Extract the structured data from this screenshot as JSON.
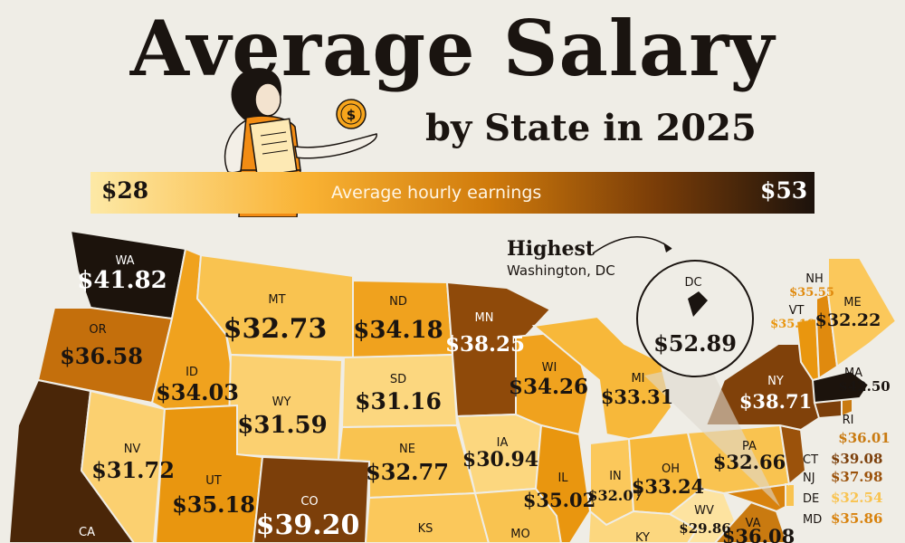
{
  "header": {
    "title": "Average Salary",
    "subtitle": "by State in 2025"
  },
  "legend": {
    "label": "Average hourly earnings",
    "min": "$28",
    "max": "$53",
    "min_color": "#fde9a6",
    "max_color": "#1c120c"
  },
  "callout": {
    "heading": "Highest",
    "subtext": "Washington, DC",
    "abbr": "DC",
    "value": "$52.89"
  },
  "states": [
    {
      "abbr": "WA",
      "value": "$41.82",
      "color": "#1c130c"
    },
    {
      "abbr": "OR",
      "value": "$36.58",
      "color": "#c46f0c"
    },
    {
      "abbr": "CA",
      "value": "",
      "color": "#4a2608"
    },
    {
      "abbr": "ID",
      "value": "$34.03",
      "color": "#f0a21e"
    },
    {
      "abbr": "NV",
      "value": "$31.72",
      "color": "#fbd070"
    },
    {
      "abbr": "UT",
      "value": "$35.18",
      "color": "#e9960f"
    },
    {
      "abbr": "MT",
      "value": "$32.73",
      "color": "#f9c350"
    },
    {
      "abbr": "WY",
      "value": "$31.59",
      "color": "#fbd070"
    },
    {
      "abbr": "CO",
      "value": "$39.20",
      "color": "#7c3f0a"
    },
    {
      "abbr": "ND",
      "value": "$34.18",
      "color": "#f0a21e"
    },
    {
      "abbr": "SD",
      "value": "$31.16",
      "color": "#fcd77f"
    },
    {
      "abbr": "NE",
      "value": "$32.77",
      "color": "#f9c350"
    },
    {
      "abbr": "KS",
      "value": "",
      "color": "#fbc85b"
    },
    {
      "abbr": "MN",
      "value": "$38.25",
      "color": "#8f4a0a"
    },
    {
      "abbr": "IA",
      "value": "$30.94",
      "color": "#fcd77f"
    },
    {
      "abbr": "MO",
      "value": "",
      "color": "#f9c350"
    },
    {
      "abbr": "WI",
      "value": "$34.26",
      "color": "#f0a21e"
    },
    {
      "abbr": "IL",
      "value": "$35.02",
      "color": "#e9960f"
    },
    {
      "abbr": "MI",
      "value": "$33.31",
      "color": "#f7b83a"
    },
    {
      "abbr": "IN",
      "value": "$32.07",
      "color": "#fbc85b"
    },
    {
      "abbr": "OH",
      "value": "$33.24",
      "color": "#f7b83a"
    },
    {
      "abbr": "KY",
      "value": "",
      "color": "#fcd77f"
    },
    {
      "abbr": "WV",
      "value": "$29.86",
      "color": "#fde3a0"
    },
    {
      "abbr": "VA",
      "value": "$36.08",
      "color": "#c97a10"
    },
    {
      "abbr": "PA",
      "value": "$32.66",
      "color": "#f9c350"
    },
    {
      "abbr": "NY",
      "value": "$38.71",
      "color": "#80410a"
    },
    {
      "abbr": "VT",
      "value": "$35.18",
      "color": "#e9960f"
    },
    {
      "abbr": "NH",
      "value": "$35.55",
      "color": "#e08a0e"
    },
    {
      "abbr": "ME",
      "value": "$32.22",
      "color": "#fbc85b"
    },
    {
      "abbr": "MA",
      "value": "$42.50",
      "color": "#1c130c"
    },
    {
      "abbr": "RI",
      "value": "$36.01",
      "color": "#c97a10"
    },
    {
      "abbr": "CT",
      "value": "$39.08",
      "color": "#7c3f0a"
    },
    {
      "abbr": "NJ",
      "value": "$37.98",
      "color": "#9b520b"
    },
    {
      "abbr": "DE",
      "value": "$32.54",
      "color": "#f9c350"
    },
    {
      "abbr": "MD",
      "value": "$35.86",
      "color": "#d8820d"
    }
  ]
}
